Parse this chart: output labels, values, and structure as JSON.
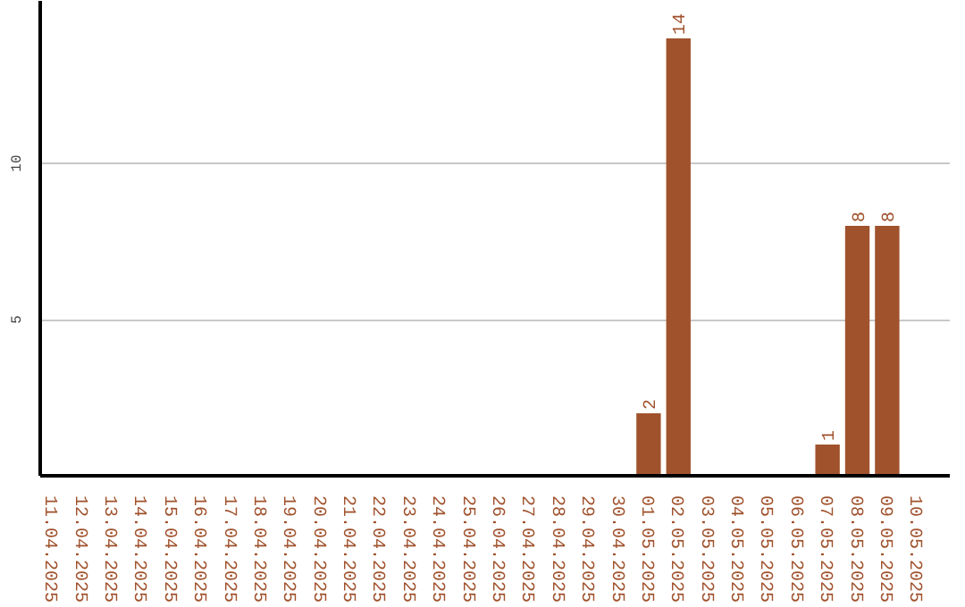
{
  "chart_data": {
    "type": "bar",
    "categories": [
      "11.04.2025",
      "12.04.2025",
      "13.04.2025",
      "14.04.2025",
      "15.04.2025",
      "16.04.2025",
      "17.04.2025",
      "18.04.2025",
      "19.04.2025",
      "20.04.2025",
      "21.04.2025",
      "22.04.2025",
      "23.04.2025",
      "24.04.2025",
      "25.04.2025",
      "26.04.2025",
      "27.04.2025",
      "28.04.2025",
      "29.04.2025",
      "30.04.2025",
      "01.05.2025",
      "02.05.2025",
      "03.05.2025",
      "04.05.2025",
      "05.05.2025",
      "06.05.2025",
      "07.05.2025",
      "08.05.2025",
      "09.05.2025",
      "10.05.2025"
    ],
    "values": [
      0,
      0,
      0,
      0,
      0,
      0,
      0,
      0,
      0,
      0,
      0,
      0,
      0,
      0,
      0,
      0,
      0,
      0,
      0,
      0,
      2,
      14,
      0,
      0,
      0,
      0,
      1,
      8,
      8,
      0
    ],
    "value_labels": [
      null,
      null,
      null,
      null,
      null,
      null,
      null,
      null,
      null,
      null,
      null,
      null,
      null,
      null,
      null,
      null,
      null,
      null,
      null,
      null,
      "2",
      "14",
      null,
      null,
      null,
      null,
      "1",
      "8",
      "8",
      null
    ],
    "color": "#a0522d",
    "ylim": [
      0,
      15.2
    ],
    "yticks": [
      5,
      10
    ],
    "grid": "y"
  }
}
